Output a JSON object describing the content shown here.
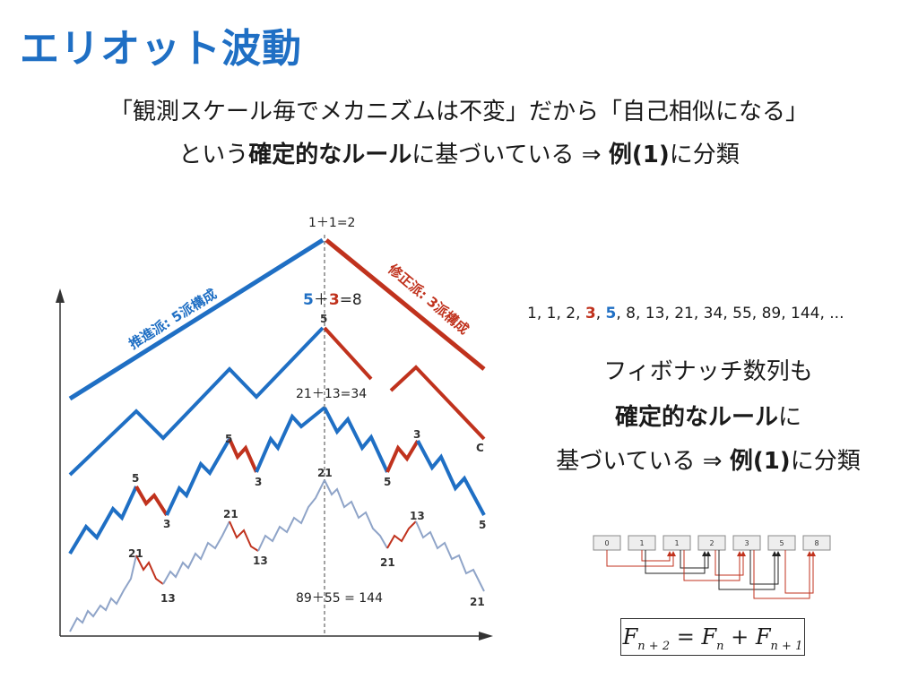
{
  "title": "エリオット波動",
  "line1": "「観測スケール毎でメカニズムは不変」だから「自己相似になる」",
  "line2": {
    "a": "という",
    "b": "確定的なルール",
    "c": "に基づいている ⇒ ",
    "d": "例(1)",
    "e": "に分類"
  },
  "figure": {
    "top_label": "1＋1=2",
    "impulse_label": "推進派: 5派構成",
    "corrective_label": "修正派: 3派構成",
    "eq2_a": "5",
    "eq2_b": "＋",
    "eq2_c": "3",
    "eq2_d": "=8",
    "eq3": "21＋13=34",
    "eq4": "89＋55 = 144",
    "marks": {
      "l1_5": "5",
      "l1_c": "C",
      "l2_5": "5",
      "l2_3": "3",
      "l2_5b": "5",
      "l2_3b": "3",
      "l2_5c": "5",
      "l3_5": "5",
      "l3_3": "3",
      "l4_21a": "21",
      "l4_13a": "13",
      "l4_21b": "21",
      "l4_13b": "13",
      "l4_21c": "21",
      "l4_21d": "21",
      "l4_13c": "13",
      "l4_21e": "21"
    },
    "colors": {
      "impulse": "#1f6fc4",
      "corrective": "#c0321d",
      "price": "#8fa4c8"
    }
  },
  "fib": {
    "s1": "1, 1, 2, ",
    "s2": "3",
    "s3": ", ",
    "s4": "5",
    "s5": ", 8, 13, 21, 34, 55, 89, 144, ..."
  },
  "right": {
    "r1": "フィボナッチ数列も",
    "r2a": "確定的なルール",
    "r2b": "に",
    "r3a": "基づいている ⇒ ",
    "r3b": "例(1)",
    "r3c": "に分類"
  },
  "seq_boxes": [
    "0",
    "1",
    "1",
    "2",
    "3",
    "5",
    "8"
  ],
  "formula": {
    "f1": "F",
    "s1": "n + 2",
    "eq": " = ",
    "f2": "F",
    "s2": "n",
    "plus": " + ",
    "f3": "F",
    "s3": "n + 1"
  }
}
